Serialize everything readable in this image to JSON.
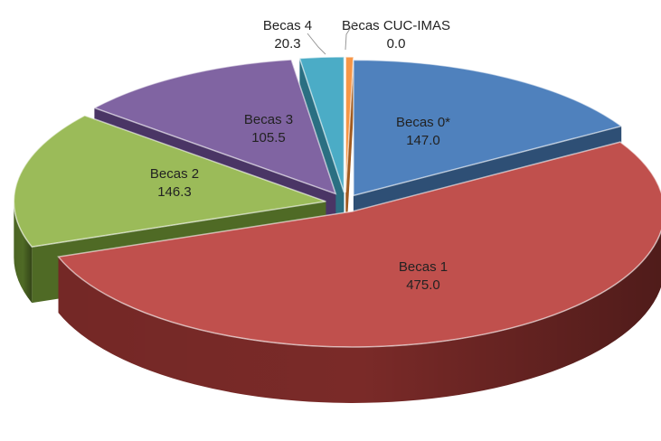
{
  "chart_data": {
    "type": "pie",
    "title": "",
    "style": "3d-exploded",
    "slices": [
      {
        "label": "Becas 0*",
        "value": 147.0,
        "display": "147.0",
        "color": "#4f81bd",
        "side": "#2e4f75"
      },
      {
        "label": "Becas 1",
        "value": 475.0,
        "display": "475.0",
        "color": "#c0504d",
        "side": "#7a2a28"
      },
      {
        "label": "Becas 2",
        "value": 146.3,
        "display": "146.3",
        "color": "#9bbb59",
        "side": "#4f6a25"
      },
      {
        "label": "Becas 3",
        "value": 105.5,
        "display": "105.5",
        "color": "#8064a2",
        "side": "#4a3565"
      },
      {
        "label": "Becas 4",
        "value": 20.3,
        "display": "20.3",
        "color": "#4bacc6",
        "side": "#2a6f82"
      },
      {
        "label": "Becas CUC-IMAS",
        "value": 0.0,
        "display": "0.0",
        "color": "#f79646",
        "side": "#a05a1f"
      }
    ]
  }
}
